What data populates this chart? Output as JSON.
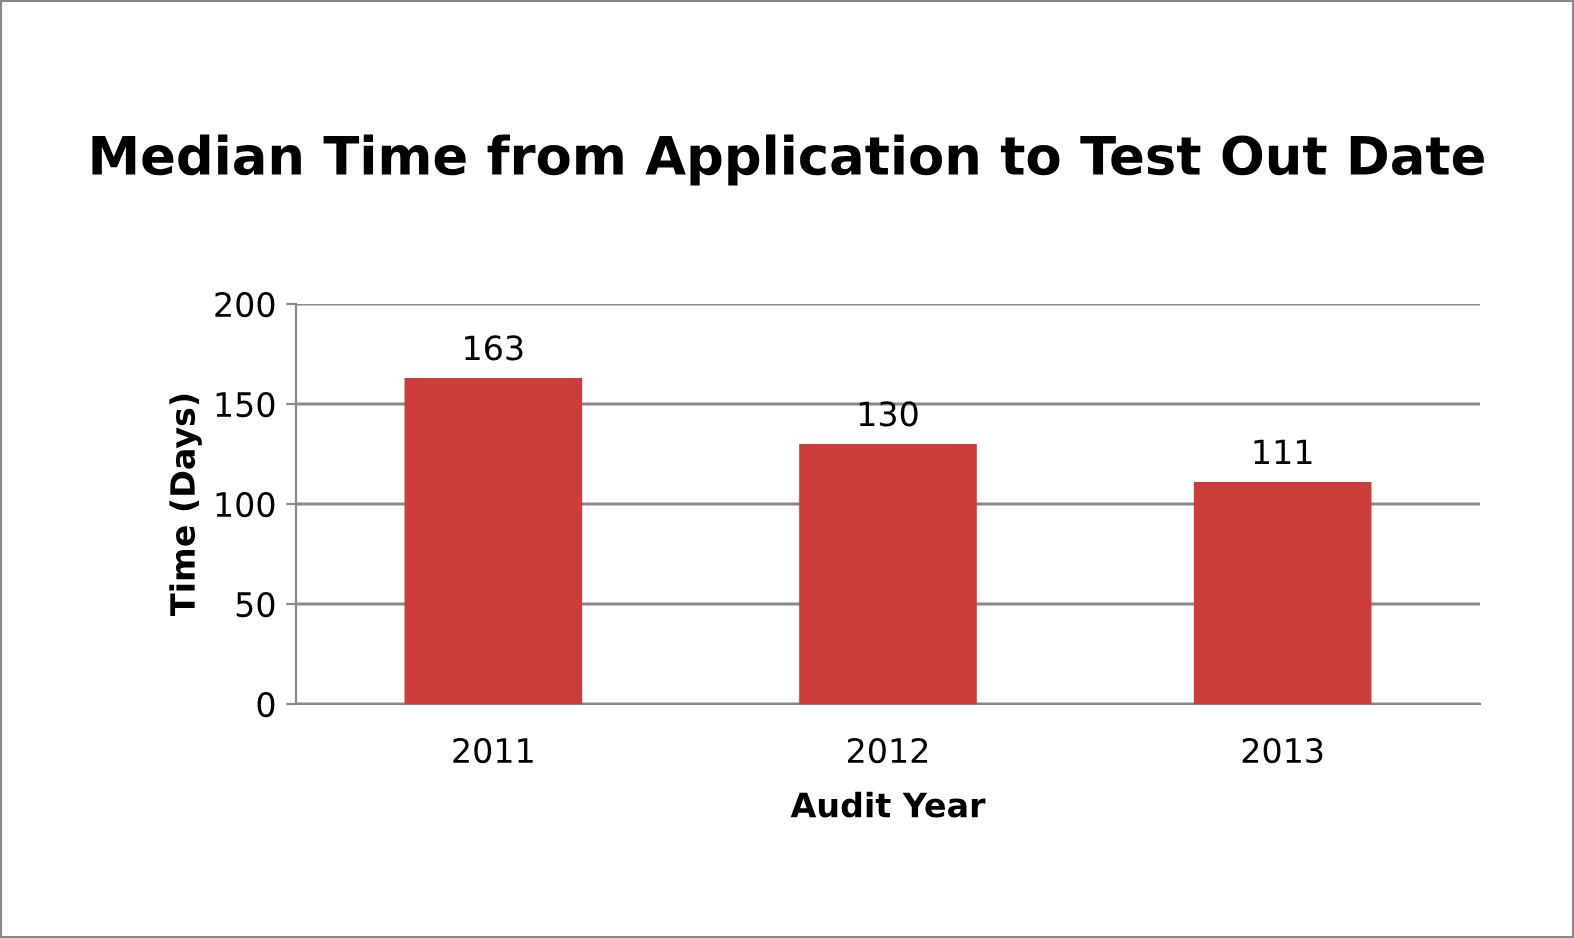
{
  "chart_data": {
    "type": "bar",
    "title": "Median Time from Application to Test Out Date",
    "xlabel": "Audit Year",
    "ylabel": "Time (Days)",
    "categories": [
      "2011",
      "2012",
      "2013"
    ],
    "values": [
      163,
      130,
      111
    ],
    "color": "#cc3d3a",
    "ylim": [
      0,
      200
    ],
    "yticks": [
      0,
      50,
      100,
      150,
      200
    ],
    "grid": "y",
    "data_labels": true
  }
}
